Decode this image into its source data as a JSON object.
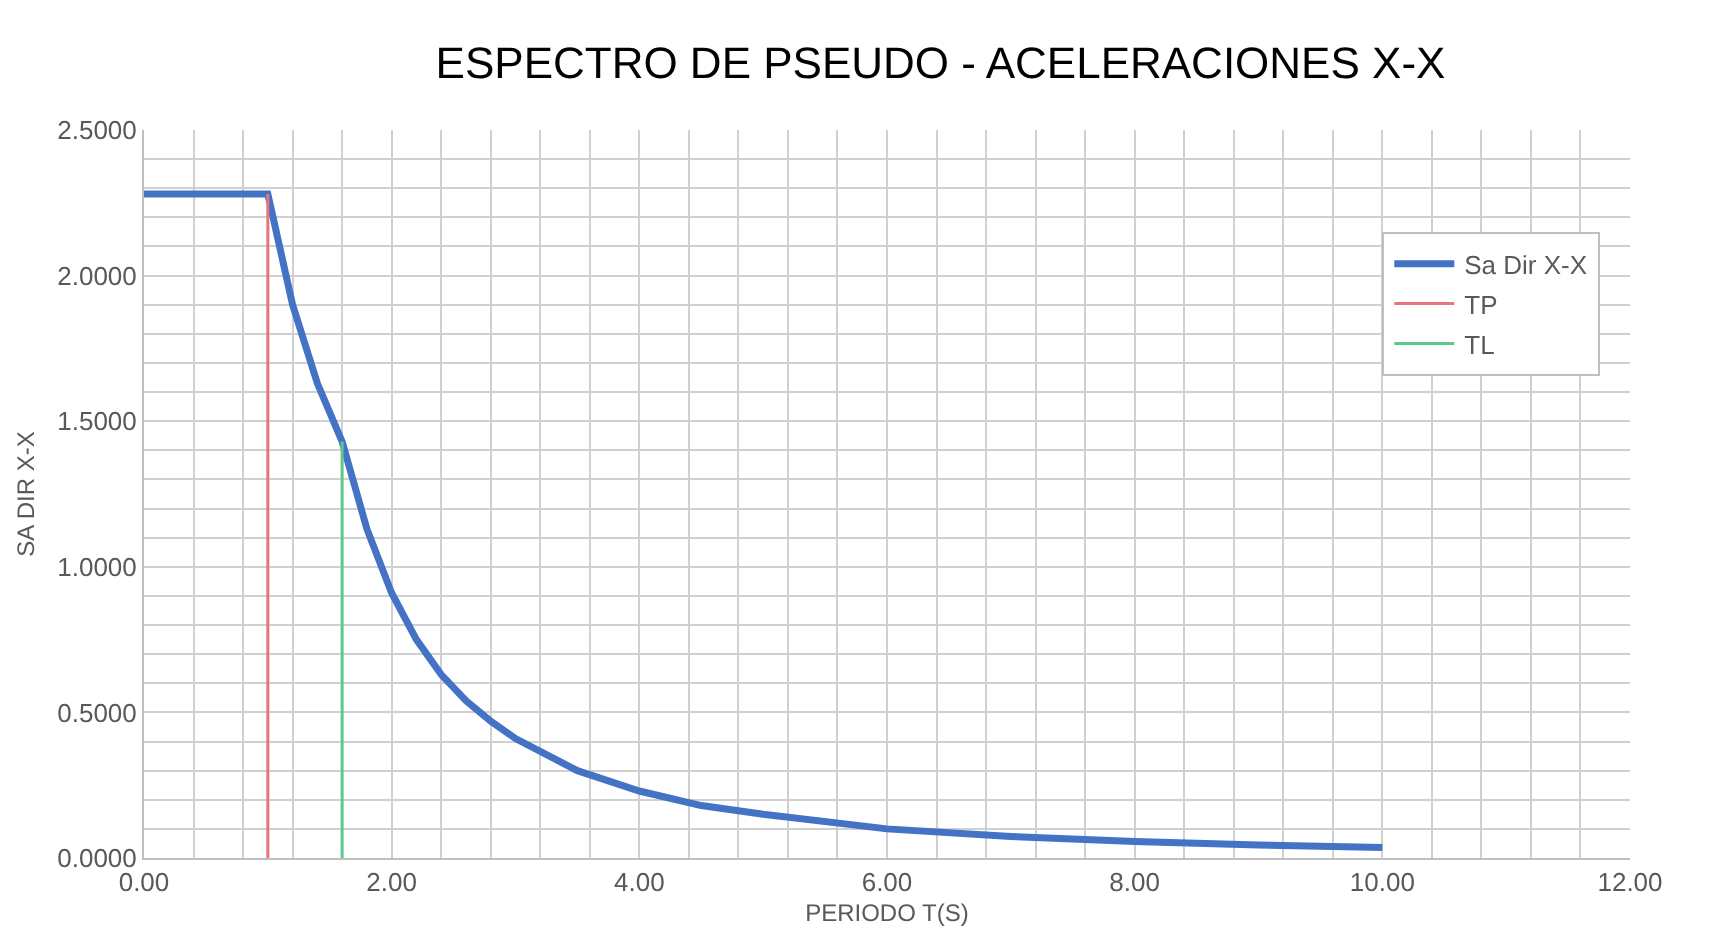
{
  "chart_data": {
    "type": "line",
    "title": "ESPECTRO DE PSEUDO - ACELERACIONES X-X",
    "xlabel": "PERIODO T(S)",
    "ylabel": "SA DIR X-X",
    "xlim": [
      0,
      12
    ],
    "xticks": [
      {
        "value": 0,
        "label": "0.00"
      },
      {
        "value": 2,
        "label": "2.00"
      },
      {
        "value": 4,
        "label": "4.00"
      },
      {
        "value": 6,
        "label": "6.00"
      },
      {
        "value": 8,
        "label": "8.00"
      },
      {
        "value": 10,
        "label": "10.00"
      },
      {
        "value": 12,
        "label": "12.00"
      }
    ],
    "ylim": [
      0,
      2.5
    ],
    "yticks": [
      {
        "value": 0,
        "label": "0.0000"
      },
      {
        "value": 0.5,
        "label": "0.5000"
      },
      {
        "value": 1,
        "label": "1.0000"
      },
      {
        "value": 1.5,
        "label": "1.5000"
      },
      {
        "value": 2,
        "label": "2.0000"
      },
      {
        "value": 2.5,
        "label": "2.5000"
      }
    ],
    "grid": true,
    "legend": "top right",
    "marker": "none",
    "line_style": "solid",
    "series": [
      {
        "name": "Sa Dir X-X",
        "color": "#4472c4",
        "x": [
          0,
          1.0,
          1.2,
          1.4,
          1.6,
          1.8,
          2.0,
          2.2,
          2.4,
          2.6,
          2.8,
          3.0,
          3.5,
          4,
          4.5,
          5,
          6,
          7,
          8,
          9,
          10
        ],
        "values": [
          2.28,
          2.28,
          1.9,
          1.63,
          1.43,
          1.13,
          0.91,
          0.75,
          0.63,
          0.54,
          0.47,
          0.41,
          0.3,
          0.23,
          0.18,
          0.15,
          0.1,
          0.074,
          0.057,
          0.045,
          0.036
        ]
      },
      {
        "name": "TP",
        "color": "#e8747c",
        "x": [
          1.0,
          1.0
        ],
        "values": [
          0,
          2.28
        ]
      },
      {
        "name": "TL",
        "color": "#5cc98a",
        "x": [
          1.6,
          1.6
        ],
        "values": [
          0,
          1.43
        ]
      }
    ]
  }
}
